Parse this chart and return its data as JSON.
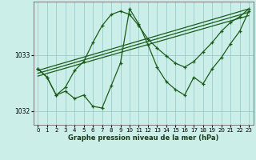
{
  "xlabel": "Graphe pression niveau de la mer (hPa)",
  "background_color": "#cceee8",
  "grid_color": "#99cccc",
  "line_color": "#1a5c1a",
  "yticks": [
    1032,
    1033
  ],
  "ylim": [
    1031.75,
    1033.95
  ],
  "xlim": [
    -0.5,
    23.5
  ],
  "xticks": [
    0,
    1,
    2,
    3,
    4,
    5,
    6,
    7,
    8,
    9,
    10,
    11,
    12,
    13,
    14,
    15,
    16,
    17,
    18,
    19,
    20,
    21,
    22,
    23
  ],
  "jagged1": [
    1032.75,
    1032.6,
    1032.28,
    1032.35,
    1032.22,
    1032.28,
    1032.08,
    1032.05,
    1032.45,
    1032.85,
    1033.82,
    1033.55,
    1033.18,
    1032.78,
    1032.52,
    1032.38,
    1032.28,
    1032.6,
    1032.48,
    1032.75,
    1032.95,
    1033.2,
    1033.42,
    1033.78
  ],
  "trend_lines": [
    {
      "x": [
        0,
        23
      ],
      "y": [
        1032.72,
        1033.82
      ]
    },
    {
      "x": [
        0,
        23
      ],
      "y": [
        1032.67,
        1033.76
      ]
    },
    {
      "x": [
        0,
        23
      ],
      "y": [
        1032.62,
        1033.7
      ]
    }
  ],
  "smooth_line": [
    1032.75,
    1032.6,
    1032.28,
    1032.42,
    1032.72,
    1032.88,
    1033.22,
    1033.52,
    1033.72,
    1033.78,
    1033.72,
    1033.52,
    1033.28,
    1033.12,
    1032.98,
    1032.85,
    1032.78,
    1032.88,
    1033.05,
    1033.22,
    1033.42,
    1033.58,
    1033.68,
    1033.82
  ]
}
